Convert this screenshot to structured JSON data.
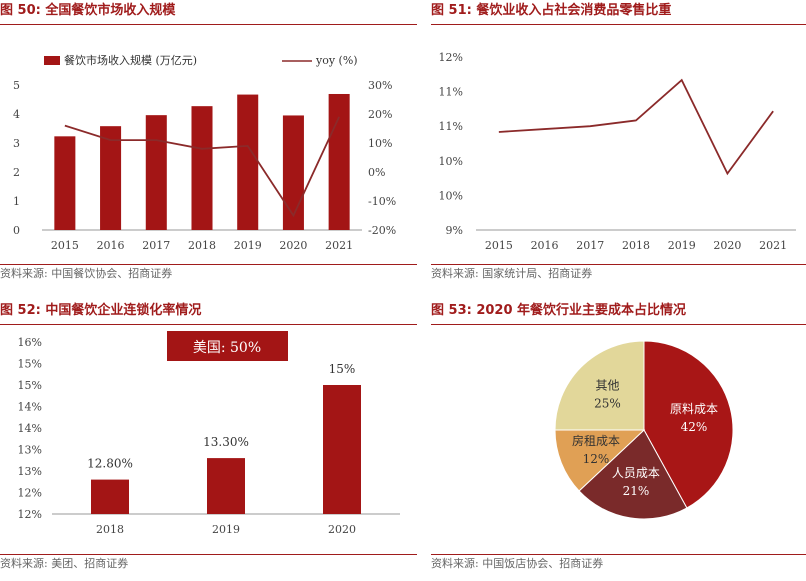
{
  "panels": [
    {
      "title": "图 50: 全国餐饮市场收入规模",
      "source": "资料来源: 中国餐饮协会、招商证券"
    },
    {
      "title": "图 51: 餐饮业收入占社会消费品零售比重",
      "source": "资料来源: 国家统计局、招商证券"
    },
    {
      "title": "图 52: 中国餐饮企业连锁化率情况",
      "source": "资料来源: 美团、招商证券"
    },
    {
      "title": "图 53: 2020 年餐饮行业主要成本占比情况",
      "source": "资料来源: 中国饭店协会、招商证券"
    }
  ],
  "colors": {
    "accent": "#a01c1c",
    "bar": "#a31515",
    "line": "#8b2a2a",
    "pie": [
      "#a81616",
      "#7a2a2a",
      "#e0a055",
      "#e2d79a"
    ]
  },
  "chart_data": [
    {
      "type": "bar",
      "categories": [
        "2015",
        "2016",
        "2017",
        "2018",
        "2019",
        "2020",
        "2021"
      ],
      "series": [
        {
          "name": "餐饮市场收入规模 (万亿元)",
          "type": "bar",
          "axis": "left",
          "values": [
            3.23,
            3.58,
            3.96,
            4.27,
            4.67,
            3.95,
            4.69
          ]
        },
        {
          "name": "yoy (%)",
          "type": "line",
          "axis": "right",
          "values": [
            16,
            11,
            11,
            8,
            9,
            -15,
            19
          ]
        }
      ],
      "ylim": [
        0,
        5
      ],
      "yticks": [
        "0",
        "1",
        "2",
        "3",
        "4",
        "5"
      ],
      "ylim_right": [
        -20,
        30
      ],
      "yticks_right": [
        "-20%",
        "-10%",
        "0%",
        "10%",
        "20%",
        "30%"
      ],
      "grid": false,
      "legend": "top"
    },
    {
      "type": "line",
      "categories": [
        "2015",
        "2016",
        "2017",
        "2018",
        "2019",
        "2020",
        "2021"
      ],
      "series": [
        {
          "values": [
            10.7,
            10.75,
            10.8,
            10.9,
            11.6,
            9.98,
            11.06
          ]
        }
      ],
      "ylim": [
        9,
        12
      ],
      "yticks": [
        "9%",
        "10%",
        "10%",
        "11%",
        "11%",
        "12%"
      ],
      "grid": false
    },
    {
      "type": "bar",
      "categories": [
        "2018",
        "2019",
        "2020"
      ],
      "values": [
        12.8,
        13.3,
        15
      ],
      "data_labels": [
        "12.80%",
        "13.30%",
        "15%"
      ],
      "ylim": [
        12,
        16
      ],
      "yticks": [
        "12%",
        "12%",
        "13%",
        "13%",
        "14%",
        "14%",
        "15%",
        "15%",
        "16%"
      ],
      "annotation": "美国: 50%",
      "grid": false
    },
    {
      "type": "pie",
      "slices": [
        {
          "label": "原料成本",
          "value": 42,
          "pct": "42%"
        },
        {
          "label": "人员成本",
          "value": 21,
          "pct": "21%"
        },
        {
          "label": "房租成本",
          "value": 12,
          "pct": "12%"
        },
        {
          "label": "其他",
          "value": 25,
          "pct": "25%"
        }
      ]
    }
  ]
}
